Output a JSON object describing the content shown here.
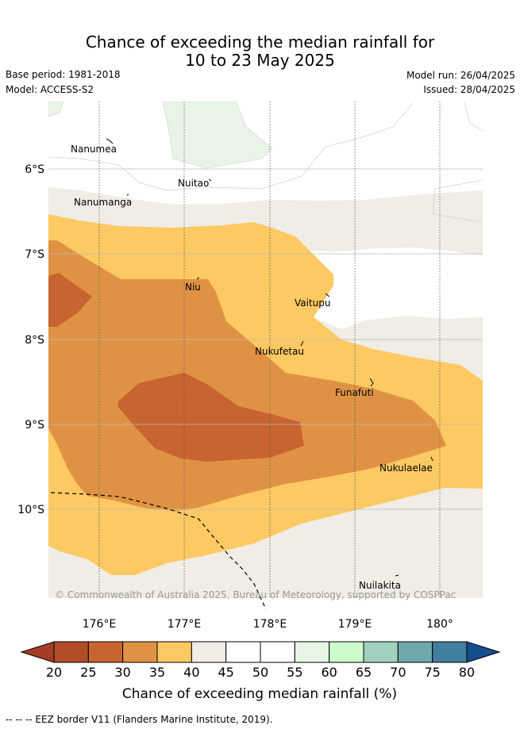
{
  "title_line1": "Chance of exceeding the median rainfall for",
  "title_line2": "10 to 23 May 2025",
  "base_period": "Base period: 1981-2018",
  "model": "Model: ACCESS-S2",
  "model_run": "Model run: 26/04/2025",
  "issued": "Issued: 28/04/2025",
  "lat_ticks": [
    "6°S",
    "7°S",
    "8°S",
    "9°S",
    "10°S"
  ],
  "lon_ticks": [
    "176°E",
    "177°E",
    "178°E",
    "179°E",
    "180°"
  ],
  "islands": [
    "Nanumea",
    "Nuitao",
    "Nanumanga",
    "Niu",
    "Vaitupu",
    "Nukufetau",
    "Funafuti",
    "Nukulaelae",
    "Nuilakita"
  ],
  "copyright": "© Commonwealth of Australia 2025, Bureau of Meteorology, supported by COSPPac",
  "colorbar": {
    "title": "Chance of exceeding median rainfall (%)",
    "labels": [
      "20",
      "25",
      "30",
      "35",
      "40",
      "45",
      "50",
      "55",
      "60",
      "65",
      "70",
      "75",
      "80"
    ],
    "colors": [
      "#b24d28",
      "#c8642f",
      "#e09244",
      "#fdc962",
      "#f0ece6",
      "#ffffff",
      "#ffffff",
      "#e8f4e6",
      "#ccfccc",
      "#9fd1be",
      "#6fa7aa",
      "#427e9d",
      "#164e8e"
    ],
    "under_color": "#a63c27",
    "over_color": "#164e8e"
  },
  "footnote": "-- -- -- EEZ border V11 (Flanders Marine Institute, 2019)."
}
